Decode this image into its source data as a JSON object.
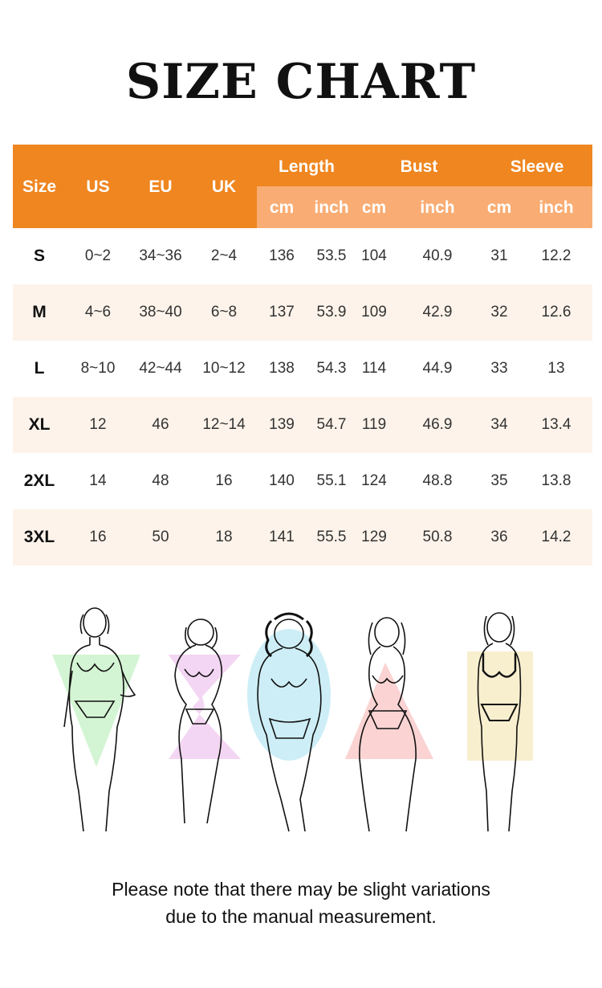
{
  "title": "SIZE CHART",
  "table": {
    "headers": {
      "size": "Size",
      "us": "US",
      "eu": "EU",
      "uk": "UK",
      "length": "Length",
      "bust": "Bust",
      "sleeve": "Sleeve",
      "cm": "cm",
      "inch": "inch"
    },
    "rows": [
      [
        "S",
        "0~2",
        "34~36",
        "2~4",
        "136",
        "53.5",
        "104",
        "40.9",
        "31",
        "12.2"
      ],
      [
        "M",
        "4~6",
        "38~40",
        "6~8",
        "137",
        "53.9",
        "109",
        "42.9",
        "32",
        "12.6"
      ],
      [
        "L",
        "8~10",
        "42~44",
        "10~12",
        "138",
        "54.3",
        "114",
        "44.9",
        "33",
        "13"
      ],
      [
        "XL",
        "12",
        "46",
        "12~14",
        "139",
        "54.7",
        "119",
        "46.9",
        "34",
        "13.4"
      ],
      [
        "2XL",
        "14",
        "48",
        "16",
        "140",
        "55.1",
        "124",
        "48.8",
        "35",
        "13.8"
      ],
      [
        "3XL",
        "16",
        "50",
        "18",
        "141",
        "55.5",
        "129",
        "50.8",
        "36",
        "14.2"
      ]
    ]
  },
  "body_shapes": [
    {
      "icon": "v-shape-figure-icon",
      "color": "#d4f5d4"
    },
    {
      "icon": "x-shape-figure-icon",
      "color": "#f3d6f3"
    },
    {
      "icon": "o-shape-figure-icon",
      "color": "#cdeef6"
    },
    {
      "icon": "a-shape-figure-icon",
      "color": "#fbd3d3"
    },
    {
      "icon": "h-shape-figure-icon",
      "color": "#f8efcf"
    }
  ],
  "note": {
    "line1": "Please note that there may be slight variations",
    "line2": "due to the manual measurement."
  },
  "colors": {
    "header": "#ef8620",
    "subheader": "#f9ad74",
    "alt_row": "#fdf3ea"
  }
}
